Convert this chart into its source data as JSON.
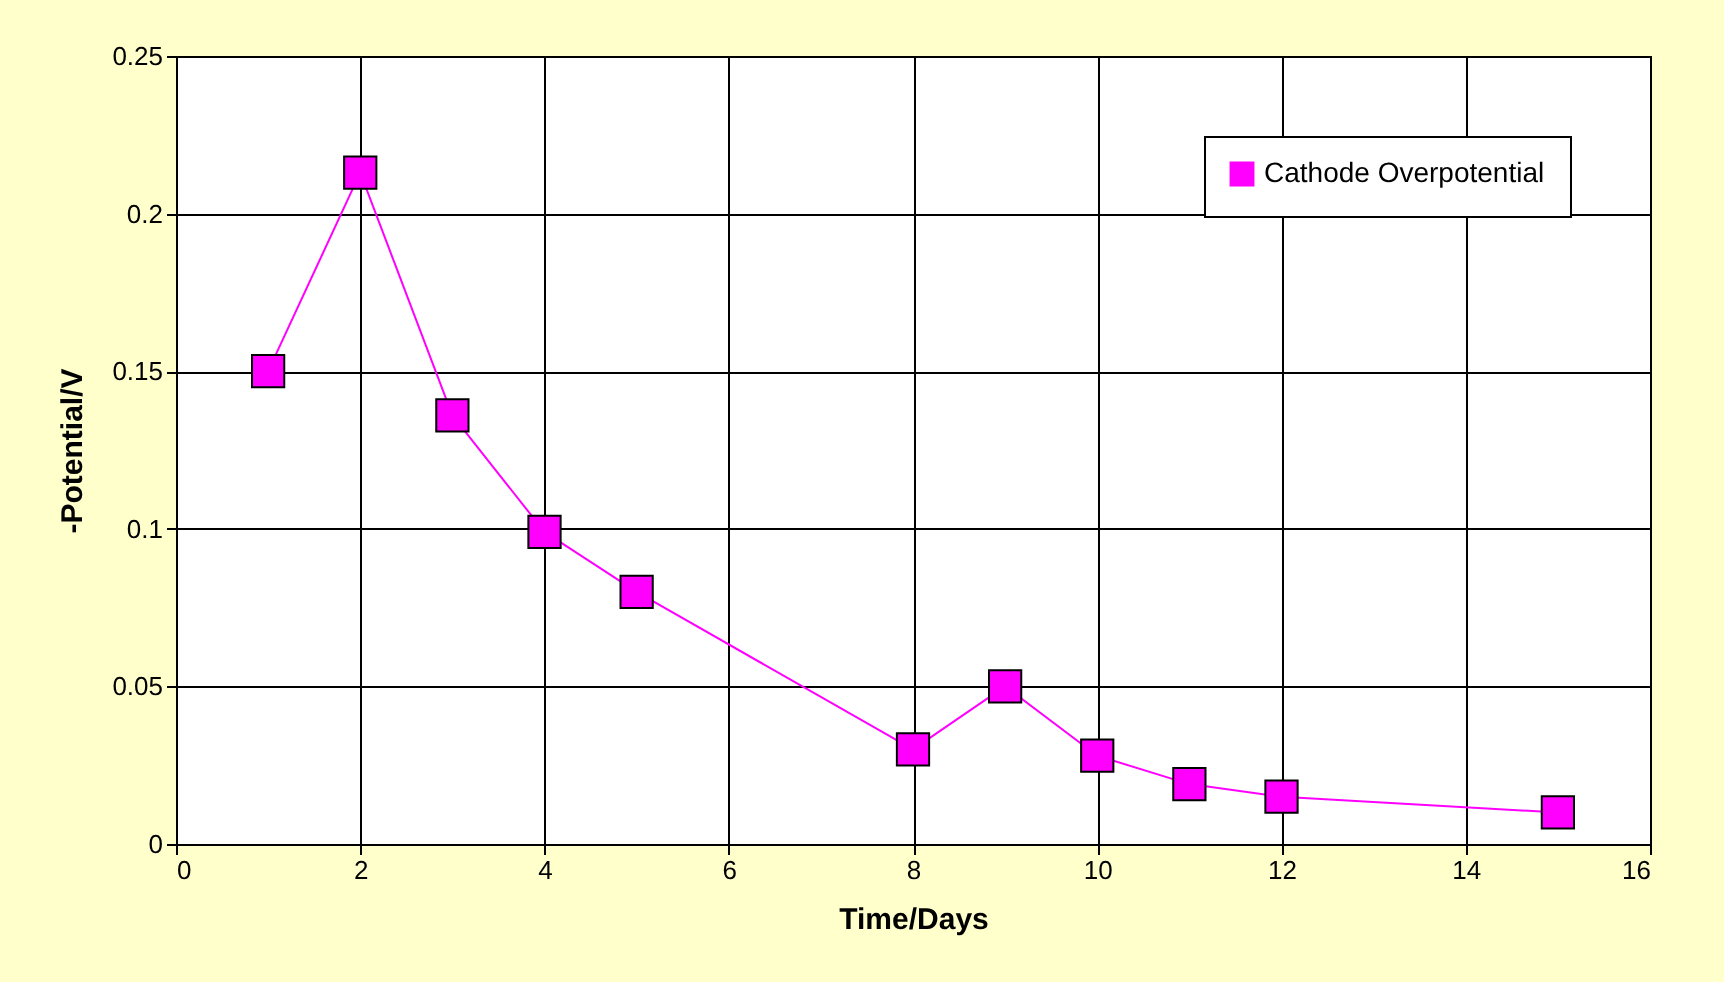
{
  "chart_data": {
    "type": "line",
    "xlabel": "Time/Days",
    "ylabel": "-Potential/V",
    "x": [
      1,
      2,
      3,
      4,
      5,
      8,
      9,
      10,
      11,
      12,
      15
    ],
    "series": [
      {
        "name": "Cathode Overpotential",
        "color": "#ff00ff",
        "values": [
          0.15,
          0.213,
          0.136,
          0.099,
          0.08,
          0.03,
          0.05,
          0.028,
          0.019,
          0.015,
          0.01
        ]
      }
    ],
    "xlim": [
      0,
      16
    ],
    "xticks": [
      0,
      2,
      4,
      6,
      8,
      10,
      12,
      14,
      16
    ],
    "ylim": [
      0,
      0.25
    ],
    "yticks": [
      0,
      0.05,
      0.1,
      0.15,
      0.2,
      0.25
    ],
    "grid": true,
    "legend": "top right",
    "marker": "square",
    "line_style": "solid"
  }
}
